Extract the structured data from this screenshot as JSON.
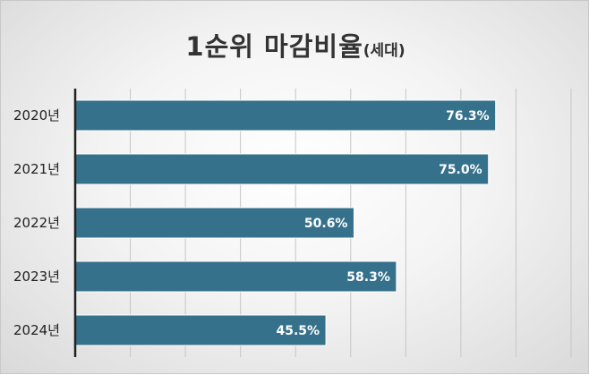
{
  "title": {
    "main": "1순위 마감비율",
    "sub": "(세대)"
  },
  "colors": {
    "bar": "#36718c",
    "grid": "#c6c6c6",
    "axis": "#222222"
  },
  "chart_data": {
    "type": "bar",
    "orientation": "horizontal",
    "title": "1순위 마감비율(세대)",
    "categories": [
      "2020년",
      "2021년",
      "2022년",
      "2023년",
      "2024년"
    ],
    "values": [
      76.3,
      75.0,
      50.6,
      58.3,
      45.5
    ],
    "data_labels": [
      "76.3%",
      "75.0%",
      "50.6%",
      "58.3%",
      "45.5%"
    ],
    "xlim": [
      0,
      90
    ],
    "xlabel": "",
    "ylabel": "",
    "grid": true,
    "legend": "none"
  }
}
